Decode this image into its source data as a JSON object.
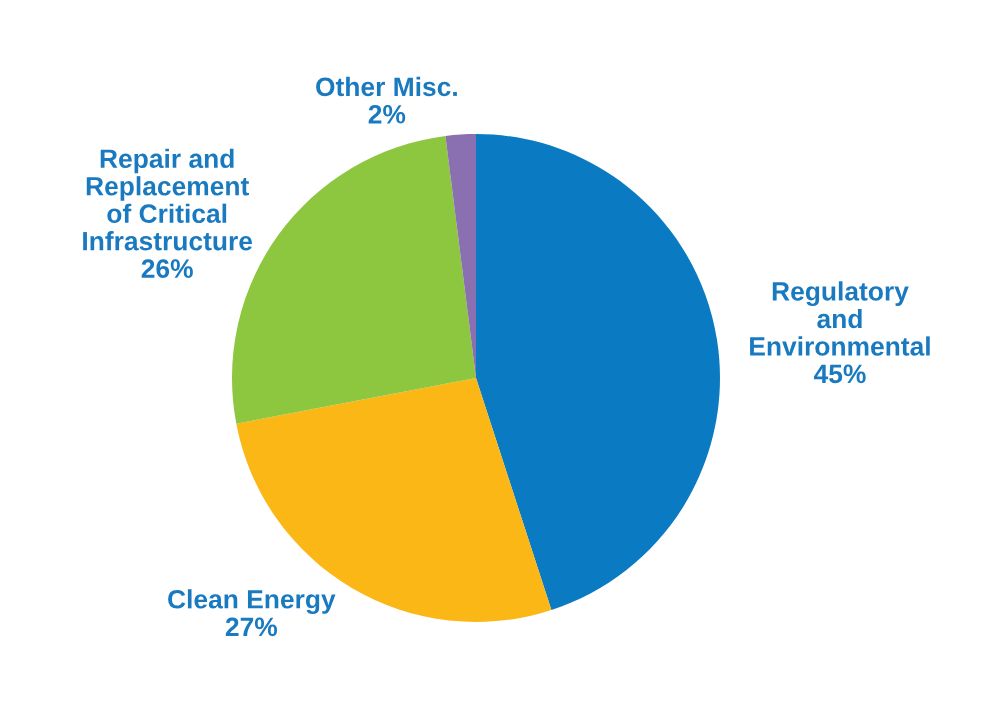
{
  "chart_data": {
    "type": "pie",
    "categories": [
      "Regulatory\nand\nEnvironmental",
      "Clean Energy",
      "Repair and\nReplacement\nof Critical\nInfrastructure",
      "Other Misc."
    ],
    "values": [
      45,
      27,
      26,
      2
    ],
    "colors": [
      "#0a7bc2",
      "#fbb715",
      "#8dc63f",
      "#8a70b0"
    ],
    "value_labels": [
      "45%",
      "27%",
      "26%",
      "2%"
    ]
  }
}
